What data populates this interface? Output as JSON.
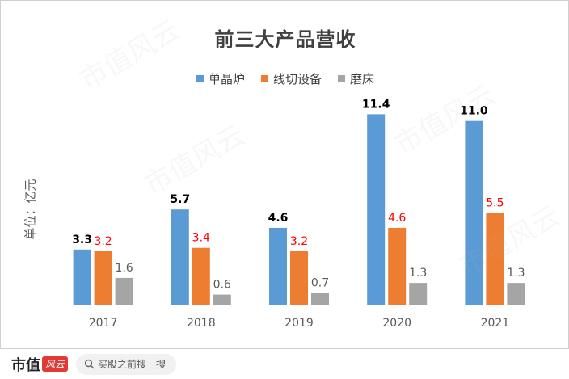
{
  "chart_data": {
    "type": "bar",
    "title": "前三大产品营收",
    "ylabel": "单位：亿元",
    "xlabel": "",
    "categories": [
      "2017",
      "2018",
      "2019",
      "2020",
      "2021"
    ],
    "ylim": [
      0,
      12
    ],
    "grid": false,
    "legend_position": "top",
    "series": [
      {
        "name": "单晶炉",
        "color": "#5b9bd5",
        "label_color": "#000000",
        "label_bold": true,
        "values": [
          3.3,
          5.7,
          4.6,
          11.4,
          11.0
        ],
        "labels": [
          "3.3",
          "5.7",
          "4.6",
          "11.4",
          "11.0"
        ]
      },
      {
        "name": "线切设备",
        "color": "#ed7d31",
        "label_color": "#ff0000",
        "label_bold": false,
        "values": [
          3.2,
          3.4,
          3.2,
          4.6,
          5.5
        ],
        "labels": [
          "3.2",
          "3.4",
          "3.2",
          "4.6",
          "5.5"
        ]
      },
      {
        "name": "磨床",
        "color": "#a5a5a5",
        "label_color": "#595959",
        "label_bold": false,
        "values": [
          1.6,
          0.6,
          0.7,
          1.3,
          1.3
        ],
        "labels": [
          "1.6",
          "0.6",
          "0.7",
          "1.3",
          "1.3"
        ]
      }
    ]
  },
  "footer": {
    "logo_text": "市值",
    "logo_stamp": "风云",
    "search_placeholder": "买股之前搜一搜"
  },
  "watermark": "市值风云"
}
